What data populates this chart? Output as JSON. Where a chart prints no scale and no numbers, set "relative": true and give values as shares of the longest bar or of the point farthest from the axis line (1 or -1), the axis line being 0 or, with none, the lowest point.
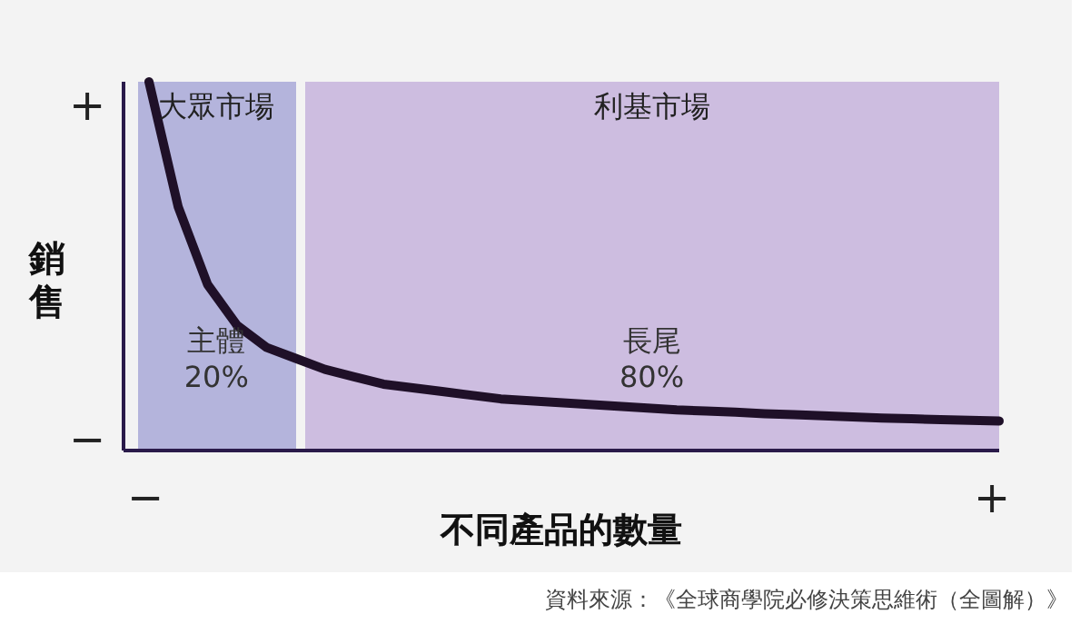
{
  "chart_data": {
    "type": "line",
    "relative": true,
    "xlabel": "不同產品的數量",
    "ylabel": "銷售",
    "categories": [
      null,
      null,
      null,
      null,
      null,
      null,
      null,
      null,
      null,
      null,
      null,
      null,
      null,
      null,
      null,
      null,
      null,
      null,
      null,
      null,
      null,
      null,
      null,
      null,
      null,
      null,
      null,
      null,
      null,
      null
    ],
    "series": [
      {
        "color": "#1f1028",
        "values": [
          1,
          0.66,
          0.45,
          0.34,
          0.28,
          0.25,
          0.22,
          0.2,
          0.18,
          0.17,
          0.16,
          0.15,
          0.14,
          0.135,
          0.13,
          0.125,
          0.12,
          0.115,
          0.11,
          0.107,
          0.104,
          0.1,
          0.097,
          0.094,
          0.091,
          0.088,
          0.086,
          0.084,
          0.082,
          0.08
        ]
      }
    ],
    "marker": "none",
    "line_style": "solid",
    "annotations": [
      "大眾市場",
      "利基市場",
      "主體 20%",
      "長尾 80%",
      "+",
      "−",
      "−",
      "+",
      "資料來源：《全球商學院必修決策思維術（全圖解）》"
    ]
  }
}
